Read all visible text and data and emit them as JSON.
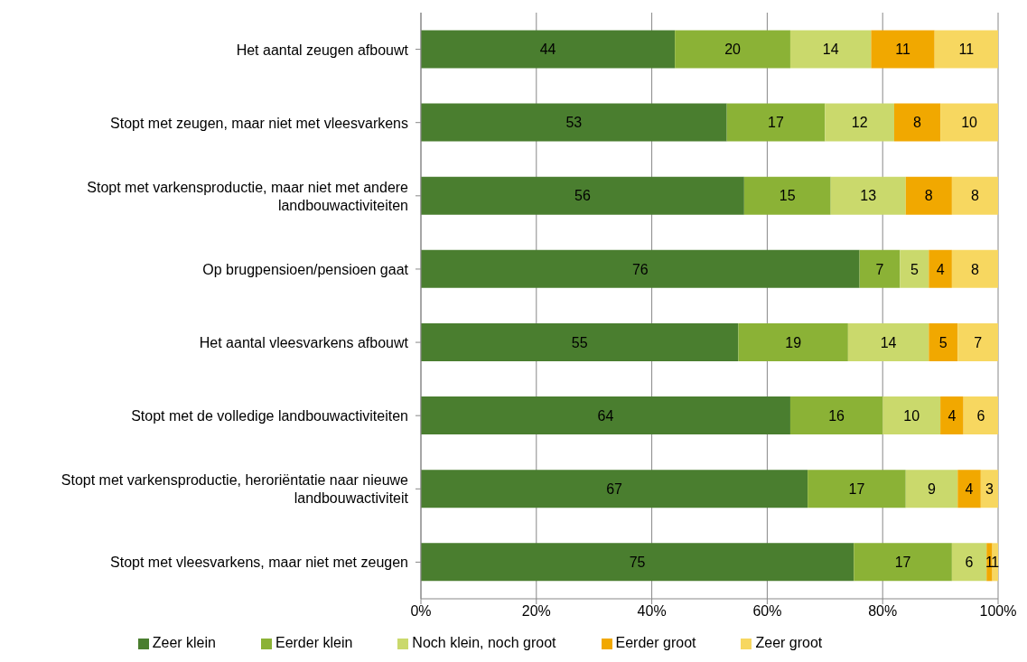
{
  "chart_data": {
    "type": "bar",
    "orientation": "horizontal",
    "stacked": true,
    "categories": [
      "Het aantal zeugen afbouwt",
      "Stopt met zeugen, maar niet met vleesvarkens",
      "Stopt met varkensproductie, maar niet met andere landbouwactiviteiten",
      "Op brugpensioen/pensioen gaat",
      "Het aantal vleesvarkens afbouwt",
      "Stopt met de volledige landbouwactiviteiten",
      "Stopt met varkensproductie, heroriëntatie naar nieuwe landbouwactiviteit",
      "Stopt met vleesvarkens, maar niet met zeugen"
    ],
    "series": [
      {
        "name": "Zeer klein",
        "color": "#4a7e2f",
        "values": [
          44,
          53,
          56,
          76,
          55,
          64,
          67,
          75
        ]
      },
      {
        "name": "Eerder klein",
        "color": "#8bb236",
        "values": [
          20,
          17,
          15,
          7,
          19,
          16,
          17,
          17
        ]
      },
      {
        "name": "Noch klein, noch groot",
        "color": "#cad96c",
        "values": [
          14,
          12,
          13,
          5,
          14,
          10,
          9,
          6
        ]
      },
      {
        "name": "Eerder groot",
        "color": "#f1a800",
        "values": [
          11,
          8,
          8,
          4,
          5,
          4,
          4,
          1
        ]
      },
      {
        "name": "Zeer groot",
        "color": "#f7d760",
        "values": [
          11,
          10,
          8,
          8,
          7,
          6,
          3,
          1
        ]
      }
    ],
    "xlim": [
      0,
      100
    ],
    "xticks": [
      {
        "value": 0,
        "label": "0%"
      },
      {
        "value": 20,
        "label": "20%"
      },
      {
        "value": 40,
        "label": "40%"
      },
      {
        "value": 60,
        "label": "60%"
      },
      {
        "value": 80,
        "label": "80%"
      },
      {
        "value": 100,
        "label": "100%"
      }
    ],
    "grid": "x",
    "legend": "bottom",
    "data_labels": true
  }
}
